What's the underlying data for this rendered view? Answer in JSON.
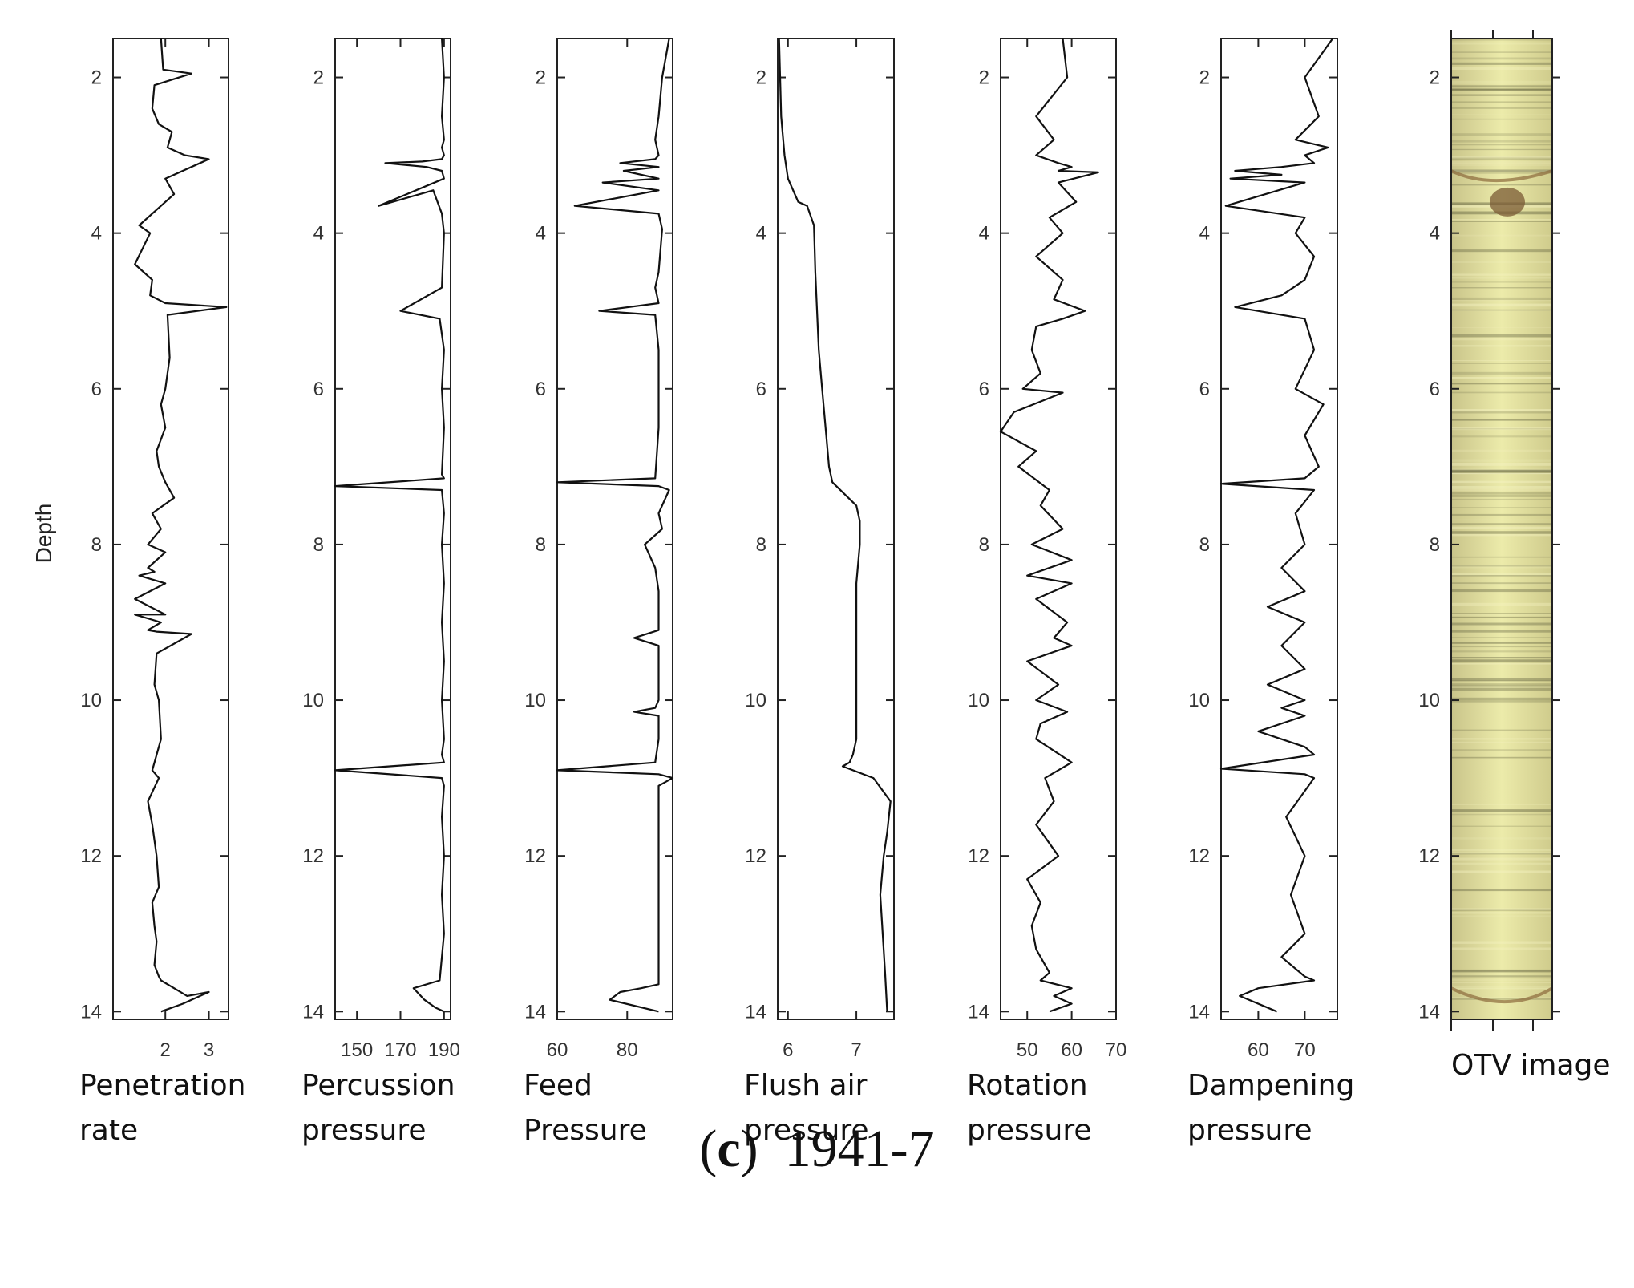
{
  "caption": {
    "letter": "c",
    "open": "(",
    "close": ")",
    "id": "1941-7"
  },
  "depth_label": "Depth",
  "chart_data": [
    {
      "type": "line",
      "xlabel": [
        "Penetration",
        "rate"
      ],
      "ylabel": "Depth",
      "xlim": [
        0.8,
        3.45
      ],
      "xticks": [
        "2",
        "3"
      ],
      "ylim": [
        14.1,
        1.5
      ],
      "yticks": [
        "2",
        "4",
        "6",
        "8",
        "10",
        "12",
        "14"
      ],
      "grid": false,
      "series": [
        {
          "x": [
            1.9,
            1.95,
            2.6,
            1.75,
            1.7,
            1.85,
            2.15,
            2.05,
            2.45,
            3.0,
            2.0,
            2.2,
            1.6,
            1.4,
            1.65,
            1.3,
            1.7,
            1.65,
            2.0,
            3.4,
            2.05,
            2.1,
            2.0,
            1.9,
            2.0,
            1.8,
            1.85,
            2.0,
            2.2,
            1.7,
            1.9,
            1.6,
            2.0,
            1.6,
            1.75,
            1.4,
            2.0,
            1.3,
            2.0,
            1.3,
            1.9,
            1.6,
            1.8,
            2.6,
            1.8,
            1.75,
            1.85,
            1.9,
            1.7,
            1.85,
            1.6,
            1.7,
            1.8,
            1.85,
            1.7,
            1.75,
            1.8,
            1.75,
            1.85,
            1.9,
            2.2,
            2.5,
            3.0,
            2.4,
            1.9
          ],
          "y": [
            1.5,
            1.9,
            1.95,
            2.1,
            2.4,
            2.6,
            2.7,
            2.9,
            3.0,
            3.05,
            3.3,
            3.5,
            3.8,
            3.9,
            4.0,
            4.4,
            4.6,
            4.8,
            4.9,
            4.95,
            5.05,
            5.6,
            6.0,
            6.2,
            6.5,
            6.8,
            7.0,
            7.2,
            7.4,
            7.6,
            7.8,
            8.0,
            8.1,
            8.3,
            8.35,
            8.4,
            8.5,
            8.7,
            8.9,
            8.9,
            9.0,
            9.1,
            9.12,
            9.15,
            9.4,
            9.8,
            10.0,
            10.5,
            10.9,
            11.0,
            11.3,
            11.6,
            12.0,
            12.4,
            12.6,
            12.9,
            13.1,
            13.4,
            13.55,
            13.6,
            13.7,
            13.8,
            13.75,
            13.9,
            14.0
          ]
        }
      ]
    },
    {
      "type": "line",
      "xlabel": [
        "Percussion",
        "pressure"
      ],
      "ylabel": "Depth",
      "xlim": [
        140,
        193
      ],
      "xticks": [
        "150",
        "170",
        "190"
      ],
      "ylim": [
        14.1,
        1.5
      ],
      "yticks": [
        "2",
        "4",
        "6",
        "8",
        "10",
        "12",
        "14"
      ],
      "grid": false,
      "series": [
        {
          "x": [
            189,
            190,
            189,
            190,
            189,
            190,
            189,
            180,
            163,
            182,
            189,
            190,
            160,
            185,
            189,
            190,
            189,
            170,
            188,
            190,
            189,
            190,
            189,
            190,
            140,
            189,
            190,
            189,
            190,
            189,
            190,
            189,
            190,
            189,
            190,
            140,
            189,
            190,
            189,
            190,
            189,
            190,
            188,
            176,
            181,
            186,
            190
          ],
          "y": [
            1.5,
            2.0,
            2.5,
            2.8,
            2.9,
            3.0,
            3.05,
            3.08,
            3.1,
            3.15,
            3.2,
            3.3,
            3.65,
            3.45,
            3.75,
            4.0,
            4.7,
            5.0,
            5.1,
            5.5,
            6.0,
            6.5,
            7.1,
            7.15,
            7.25,
            7.3,
            7.6,
            8.0,
            8.5,
            9.0,
            9.5,
            10.0,
            10.5,
            10.7,
            10.8,
            10.9,
            11.0,
            11.1,
            11.5,
            12.0,
            12.5,
            13.0,
            13.6,
            13.7,
            13.85,
            13.95,
            14.0
          ]
        }
      ]
    },
    {
      "type": "line",
      "xlabel": [
        "Feed",
        "Pressure"
      ],
      "ylabel": "Depth",
      "xlim": [
        60,
        93
      ],
      "xticks": [
        "60",
        "80"
      ],
      "ylim": [
        14.1,
        1.5
      ],
      "yticks": [
        "2",
        "4",
        "6",
        "8",
        "10",
        "12",
        "14"
      ],
      "grid": false,
      "series": [
        {
          "x": [
            92,
            90,
            89,
            88,
            89,
            88,
            78,
            89,
            79,
            89,
            73,
            89,
            65,
            89,
            90,
            89,
            88,
            89,
            72,
            88,
            89,
            89,
            88,
            60,
            89,
            92,
            89,
            90,
            85,
            88,
            89,
            89,
            89,
            82,
            89,
            89,
            89,
            88,
            82,
            89,
            89,
            88,
            60,
            89,
            93,
            89,
            89,
            89,
            89,
            84,
            78,
            75,
            89
          ],
          "y": [
            1.5,
            2.0,
            2.5,
            2.8,
            3.0,
            3.05,
            3.1,
            3.15,
            3.2,
            3.3,
            3.35,
            3.45,
            3.65,
            3.75,
            3.95,
            4.5,
            4.7,
            4.9,
            5.0,
            5.05,
            5.5,
            6.5,
            7.15,
            7.2,
            7.25,
            7.3,
            7.6,
            7.8,
            8.0,
            8.3,
            8.6,
            9.0,
            9.1,
            9.2,
            9.3,
            9.8,
            10.0,
            10.1,
            10.15,
            10.2,
            10.5,
            10.8,
            10.9,
            10.95,
            11.0,
            11.1,
            12.0,
            13.0,
            13.65,
            13.7,
            13.75,
            13.85,
            14.0
          ]
        }
      ]
    },
    {
      "type": "line",
      "xlabel": [
        "Flush air",
        "pressure"
      ],
      "ylabel": "Depth",
      "xlim": [
        5.85,
        7.55
      ],
      "xticks": [
        "6",
        "7"
      ],
      "ylim": [
        14.1,
        1.5
      ],
      "yticks": [
        "2",
        "4",
        "6",
        "8",
        "10",
        "12",
        "14"
      ],
      "grid": false,
      "series": [
        {
          "x": [
            5.87,
            5.9,
            5.95,
            6.0,
            6.1,
            6.15,
            6.28,
            6.38,
            6.4,
            6.45,
            6.5,
            6.55,
            6.6,
            6.65,
            7.0,
            7.05,
            7.05,
            7.0,
            7.0,
            7.0,
            7.0,
            6.95,
            6.9,
            6.8,
            7.25,
            7.5,
            7.45,
            7.4,
            7.35,
            7.42,
            7.45
          ],
          "y": [
            1.5,
            2.5,
            3.0,
            3.3,
            3.5,
            3.6,
            3.65,
            3.9,
            4.5,
            5.5,
            6.0,
            6.5,
            7.0,
            7.2,
            7.5,
            7.7,
            8.0,
            8.5,
            9.0,
            10.0,
            10.5,
            10.7,
            10.8,
            10.85,
            11.0,
            11.3,
            11.7,
            12.0,
            12.5,
            13.5,
            14.0
          ]
        }
      ]
    },
    {
      "type": "line",
      "xlabel": [
        "Rotation",
        "pressure"
      ],
      "ylabel": "Depth",
      "xlim": [
        44,
        70
      ],
      "xticks": [
        "50",
        "60",
        "70"
      ],
      "ylim": [
        14.1,
        1.5
      ],
      "yticks": [
        "2",
        "4",
        "6",
        "8",
        "10",
        "12",
        "14"
      ],
      "grid": false,
      "series": [
        {
          "x": [
            58,
            59,
            52,
            56,
            52,
            57,
            60,
            57,
            66,
            57,
            61,
            55,
            58,
            52,
            58,
            56,
            63,
            58,
            52,
            51,
            53,
            49,
            58,
            47,
            44,
            52,
            48,
            55,
            53,
            58,
            51,
            60,
            50,
            60,
            52,
            59,
            56,
            60,
            50,
            57,
            52,
            59,
            53,
            52,
            60,
            54,
            56,
            52,
            57,
            50,
            53,
            51,
            52,
            55,
            53,
            60,
            56,
            60,
            55
          ],
          "y": [
            1.5,
            2.0,
            2.5,
            2.8,
            3.0,
            3.1,
            3.15,
            3.2,
            3.22,
            3.35,
            3.6,
            3.8,
            4.0,
            4.3,
            4.6,
            4.85,
            5.0,
            5.1,
            5.2,
            5.5,
            5.8,
            6.0,
            6.05,
            6.3,
            6.55,
            6.8,
            7.0,
            7.3,
            7.5,
            7.8,
            8.0,
            8.2,
            8.4,
            8.5,
            8.7,
            9.0,
            9.2,
            9.3,
            9.5,
            9.8,
            10.0,
            10.15,
            10.3,
            10.5,
            10.8,
            11.0,
            11.3,
            11.6,
            12.0,
            12.3,
            12.6,
            12.9,
            13.2,
            13.5,
            13.6,
            13.7,
            13.8,
            13.9,
            14.0
          ]
        }
      ]
    },
    {
      "type": "line",
      "xlabel": [
        "Dampening",
        "pressure"
      ],
      "ylabel": "Depth",
      "xlim": [
        52,
        77
      ],
      "xticks": [
        "60",
        "70"
      ],
      "ylim": [
        14.1,
        1.5
      ],
      "yticks": [
        "2",
        "4",
        "6",
        "8",
        "10",
        "12",
        "14"
      ],
      "grid": false,
      "series": [
        {
          "x": [
            76,
            70,
            73,
            68,
            75,
            70,
            72,
            65,
            55,
            65,
            54,
            70,
            53,
            70,
            68,
            72,
            70,
            65,
            55,
            70,
            72,
            68,
            74,
            70,
            73,
            70,
            52,
            72,
            68,
            70,
            65,
            70,
            62,
            70,
            65,
            70,
            62,
            70,
            65,
            70,
            60,
            70,
            72,
            52,
            70,
            72,
            66,
            70,
            67,
            70,
            65,
            70,
            72,
            60,
            56,
            64
          ],
          "y": [
            1.5,
            2.0,
            2.5,
            2.8,
            2.9,
            3.0,
            3.1,
            3.15,
            3.2,
            3.25,
            3.3,
            3.35,
            3.65,
            3.8,
            4.0,
            4.3,
            4.6,
            4.8,
            4.95,
            5.1,
            5.5,
            6.0,
            6.2,
            6.6,
            7.0,
            7.15,
            7.22,
            7.3,
            7.6,
            8.0,
            8.3,
            8.6,
            8.8,
            9.0,
            9.3,
            9.6,
            9.8,
            10.0,
            10.1,
            10.2,
            10.4,
            10.6,
            10.7,
            10.88,
            10.95,
            11.0,
            11.5,
            12.0,
            12.5,
            13.0,
            13.3,
            13.55,
            13.6,
            13.7,
            13.8,
            14.0
          ]
        }
      ]
    }
  ],
  "otv_panel": {
    "label": "OTV image",
    "yticks": [
      "2",
      "4",
      "6",
      "8",
      "10",
      "12",
      "14"
    ]
  }
}
